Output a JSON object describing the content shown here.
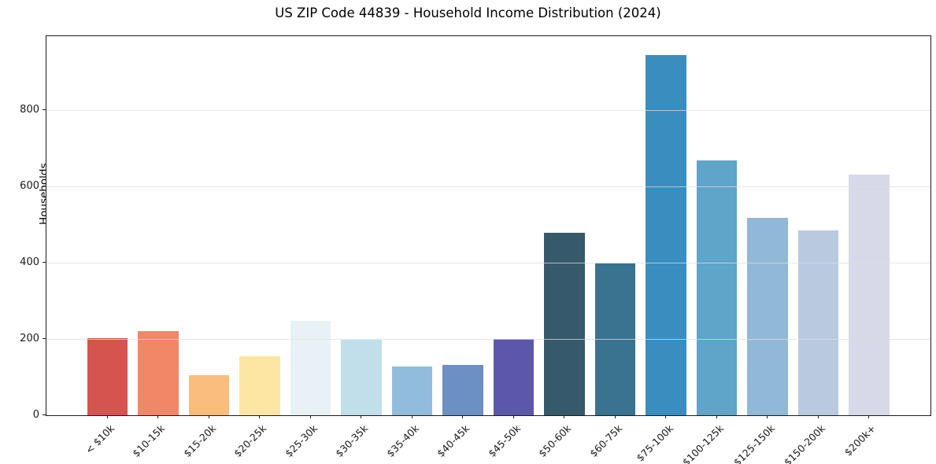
{
  "chart_data": {
    "type": "bar",
    "title": "US ZIP Code 44839 - Household Income Distribution (2024)",
    "xlabel": "",
    "ylabel": "Households",
    "categories": [
      "< $10k",
      "$10-15k",
      "$15-20k",
      "$20-25k",
      "$25-30k",
      "$30-35k",
      "$35-40k",
      "$40-45k",
      "$45-50k",
      "$50-60k",
      "$60-75k",
      "$75-100k",
      "$100-125k",
      "$125-150k",
      "$150-200k",
      "$200k+"
    ],
    "values": [
      203,
      221,
      106,
      155,
      247,
      198,
      127,
      133,
      200,
      478,
      398,
      945,
      668,
      517,
      484,
      631
    ],
    "bar_colors": [
      "#d5544f",
      "#f28767",
      "#fbbd7d",
      "#fde5a3",
      "#e8f2f6",
      "#c0dfeb",
      "#92bcdb",
      "#6c8fc4",
      "#5b58aa",
      "#36596b",
      "#387390",
      "#3a8dbf",
      "#5fa4c9",
      "#91b8d7",
      "#b9c9e0",
      "#d7d9e8"
    ],
    "yticks": [
      0,
      200,
      400,
      600,
      800
    ],
    "ylim": [
      0,
      994
    ],
    "grid": "horizontal",
    "grid_color": "#dedede",
    "spine_color": "#1a1a1a",
    "background_color": "#ffffff",
    "legend": "none"
  }
}
